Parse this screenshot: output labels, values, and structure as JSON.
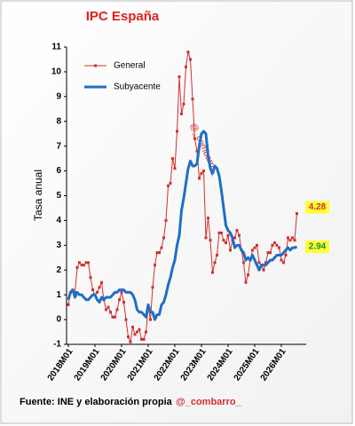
{
  "chart_data": {
    "type": "line",
    "title": "IPC España",
    "y_label": "Tasa anual",
    "watermark": "@_combarro_",
    "source": "Fuente: INE y elaboración propia",
    "credit": "@_combarro_",
    "categories": [
      "2018M01",
      null,
      null,
      null,
      null,
      null,
      null,
      null,
      null,
      null,
      null,
      null,
      "2019M01",
      null,
      null,
      null,
      null,
      null,
      null,
      null,
      null,
      null,
      null,
      null,
      "2020M01",
      null,
      null,
      null,
      null,
      null,
      null,
      null,
      null,
      null,
      null,
      null,
      "2021M01",
      null,
      null,
      null,
      null,
      null,
      null,
      null,
      null,
      null,
      null,
      null,
      "2022M01",
      null,
      null,
      null,
      null,
      null,
      null,
      null,
      null,
      null,
      null,
      null,
      "2023M01",
      null,
      null,
      null,
      null,
      null,
      null,
      null,
      null,
      null,
      null,
      null,
      "2024M01",
      null,
      null,
      null,
      null,
      null,
      null,
      null,
      null,
      null,
      null,
      null,
      "2025M01",
      null,
      null,
      null,
      null,
      null,
      null,
      null,
      null,
      null,
      null,
      null,
      "2026M01",
      null,
      null,
      null,
      null,
      null,
      null,
      null
    ],
    "series": [
      {
        "name": "General",
        "color": "#d03030",
        "markers": true,
        "values": [
          0.6,
          1.1,
          1.2,
          1.1,
          2.1,
          2.3,
          2.2,
          2.2,
          2.3,
          2.3,
          1.7,
          1.2,
          1.0,
          1.1,
          1.3,
          1.5,
          0.8,
          0.4,
          0.5,
          0.3,
          0.1,
          0.1,
          0.4,
          0.8,
          1.1,
          0.7,
          0.0,
          -0.7,
          -0.9,
          -0.3,
          -0.6,
          -0.5,
          -0.4,
          -0.8,
          -0.8,
          -0.5,
          0.5,
          0.0,
          1.3,
          2.2,
          2.7,
          2.7,
          2.9,
          3.3,
          4.0,
          5.4,
          5.5,
          6.5,
          6.1,
          7.6,
          9.8,
          8.3,
          8.7,
          10.2,
          10.8,
          10.5,
          8.9,
          7.3,
          6.8,
          5.7,
          5.9,
          6.0,
          3.3,
          4.1,
          3.2,
          1.9,
          2.3,
          2.6,
          3.5,
          3.5,
          3.2,
          3.1,
          3.4,
          2.8,
          3.2,
          3.3,
          3.6,
          3.4,
          2.8,
          2.3,
          1.5,
          1.8,
          2.4,
          2.8,
          2.9,
          3.0,
          2.3,
          2.2,
          2.0,
          2.3,
          2.7,
          2.7,
          3.0,
          3.1,
          3.0,
          2.9,
          2.4,
          2.3,
          2.6,
          3.3,
          3.2,
          3.3,
          3.2,
          4.28
        ]
      },
      {
        "name": "Subyacente",
        "color": "#1f6fc5",
        "markers": false,
        "values": [
          0.8,
          1.1,
          1.2,
          0.9,
          1.1,
          1.0,
          1.0,
          0.9,
          0.8,
          0.8,
          0.9,
          1.0,
          1.0,
          0.8,
          0.7,
          0.9,
          0.8,
          0.9,
          0.9,
          0.9,
          1.0,
          1.1,
          1.1,
          1.2,
          1.2,
          1.2,
          1.1,
          1.1,
          1.1,
          1.0,
          0.8,
          0.4,
          0.3,
          0.3,
          0.2,
          0.1,
          0.6,
          0.3,
          0.3,
          0.0,
          0.2,
          0.2,
          0.6,
          0.7,
          1.0,
          1.4,
          1.7,
          2.1,
          2.4,
          3.0,
          3.4,
          4.4,
          4.9,
          5.5,
          6.1,
          6.4,
          6.2,
          6.2,
          6.3,
          7.0,
          7.5,
          7.6,
          7.5,
          6.6,
          6.1,
          5.9,
          6.2,
          6.1,
          5.8,
          5.2,
          4.5,
          3.8,
          3.6,
          3.5,
          3.3,
          2.9,
          3.0,
          3.0,
          2.8,
          2.7,
          2.4,
          2.5,
          2.4,
          2.6,
          2.4,
          2.2,
          2.0,
          2.2,
          2.2,
          2.2,
          2.3,
          2.4,
          2.4,
          2.5,
          2.6,
          2.6,
          2.6,
          2.7,
          2.8,
          2.9,
          2.8,
          2.9,
          2.9,
          2.94
        ]
      }
    ],
    "ylim": [
      -1,
      11
    ],
    "yticks": [
      -1,
      0,
      1,
      2,
      3,
      4,
      5,
      6,
      7,
      8,
      9,
      10,
      11
    ],
    "grid": false
  }
}
